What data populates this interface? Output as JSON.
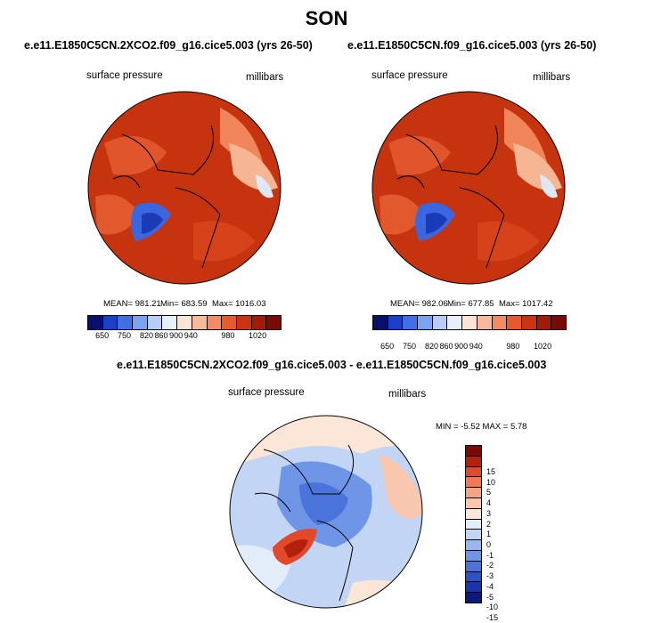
{
  "title": "SON",
  "panels": [
    {
      "case": "e.e11.E1850C5CN.2XCO2.f09_g16.cice5.003 (yrs 26-50)",
      "variable": "surface pressure",
      "units": "millibars",
      "mean": "MEAN= 981.21",
      "min": "Min= 683.59",
      "max": "Max= 1016.03"
    },
    {
      "case": "e.e11.E1850C5CN.f09_g16.cice5.003 (yrs 26-50)",
      "variable": "surface pressure",
      "units": "millibars",
      "mean": "MEAN= 982.06",
      "min": "Min= 677.85",
      "max": "Max= 1017.42"
    }
  ],
  "abs_colorbar": {
    "colors": [
      "#08106e",
      "#1a3fc9",
      "#3f6fe6",
      "#7aa2ee",
      "#b7cdf3",
      "#e8eefa",
      "#fbe4d6",
      "#f6b999",
      "#f28a62",
      "#e8592c",
      "#cc3310",
      "#a3190a",
      "#7a0a05"
    ],
    "ticks": [
      "650",
      "750",
      "820",
      "860",
      "900",
      "940",
      "980",
      "1020"
    ]
  },
  "diff": {
    "case": "e.e11.E1850C5CN.2XCO2.f09_g16.cice5.003 - e.e11.E1850C5CN.f09_g16.cice5.003",
    "variable": "surface pressure",
    "units": "millibars",
    "minmax": "MIN =  -5.52 MAX =   5.78"
  },
  "diff_colorbar": {
    "colors": [
      "#7a0a05",
      "#b3200d",
      "#e0492a",
      "#f27a52",
      "#f6a384",
      "#f8c7ae",
      "#fbe6d8",
      "#e3ecf9",
      "#c2d5f4",
      "#98b8ee",
      "#6e95e6",
      "#4a74dc",
      "#2d52c8",
      "#1a33a8",
      "#0a1a7a"
    ],
    "ticks": [
      "15",
      "10",
      "5",
      "4",
      "3",
      "2",
      "1",
      "0",
      "-1",
      "-2",
      "-3",
      "-4",
      "-5",
      "-10",
      "-15"
    ]
  }
}
